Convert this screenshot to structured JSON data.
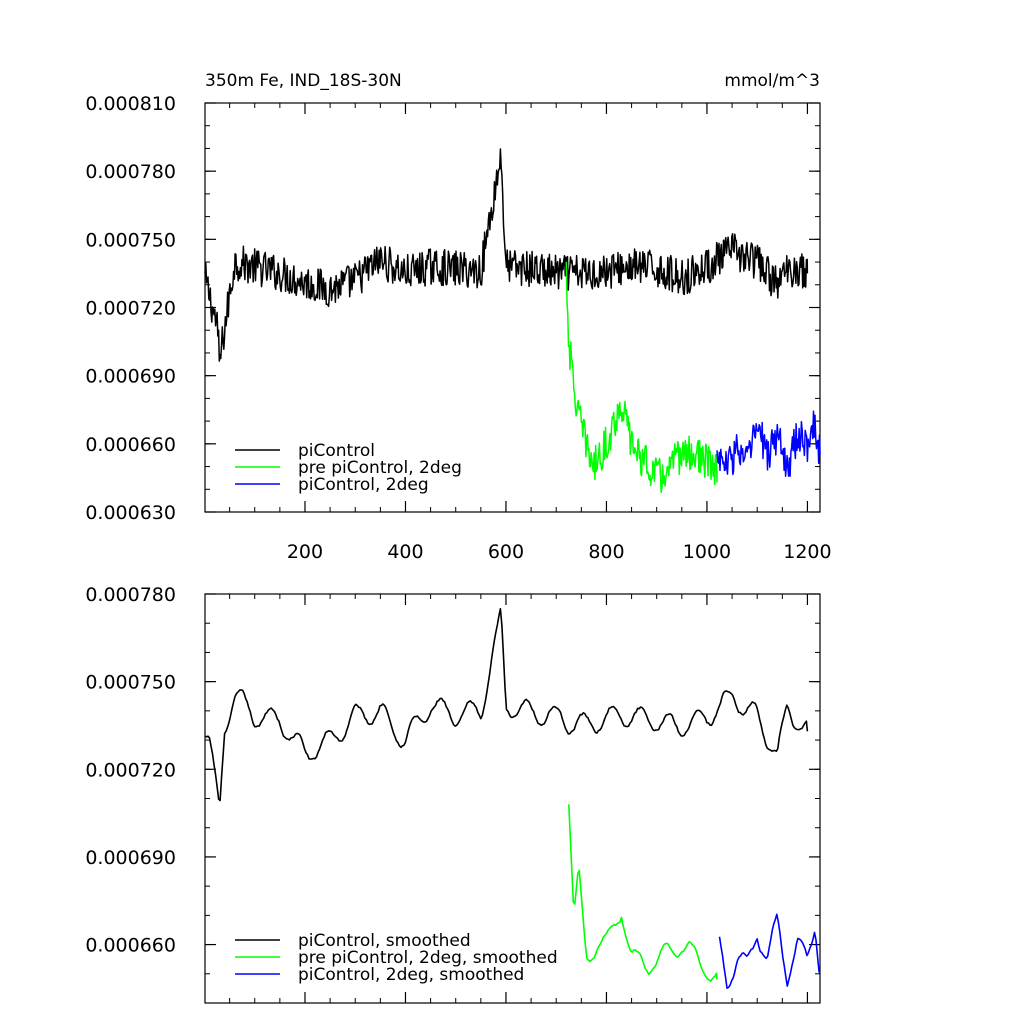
{
  "chart_data": [
    {
      "type": "line",
      "title": "350m Fe, IND_18S-30N",
      "units": "mmol/m^3",
      "xlim": [
        1,
        1225
      ],
      "ylim": [
        0.00063,
        0.00081
      ],
      "x_ticks": [
        200,
        400,
        600,
        800,
        1000,
        1200
      ],
      "y_ticks": [
        0.00063,
        0.00066,
        0.00069,
        0.00072,
        0.00075,
        0.00078,
        0.00081
      ],
      "y_tick_labels": [
        "0.000630",
        "0.000660",
        "0.000690",
        "0.000720",
        "0.000750",
        "0.000780",
        "0.000810"
      ],
      "grid": false,
      "legend_position": "bottom-left",
      "series": [
        {
          "name": "piControl",
          "color": "#000000",
          "x": [
            1,
            25,
            30,
            60,
            100,
            150,
            200,
            250,
            300,
            350,
            400,
            450,
            500,
            550,
            590,
            600,
            650,
            700,
            730,
            760,
            800,
            850,
            900,
            950,
            1000,
            1050,
            1100,
            1140,
            1150,
            1175,
            1200
          ],
          "y": [
            0.000733,
            0.000712,
            0.000696,
            0.00074,
            0.000738,
            0.000735,
            0.000731,
            0.000728,
            0.000732,
            0.000741,
            0.000735,
            0.000738,
            0.000737,
            0.000736,
            0.000787,
            0.000738,
            0.000737,
            0.000735,
            0.000735,
            0.000735,
            0.000736,
            0.000738,
            0.000737,
            0.000733,
            0.000738,
            0.000745,
            0.00074,
            0.00073,
            0.000734,
            0.000738,
            0.000735
          ]
        },
        {
          "name": "pre piControl, 2deg",
          "color": "#00ff00",
          "x": [
            720,
            725,
            735,
            745,
            760,
            775,
            800,
            830,
            850,
            880,
            910,
            950,
            980,
            1020
          ],
          "y": [
            0.000738,
            0.000705,
            0.000685,
            0.000672,
            0.00066,
            0.00065,
            0.00066,
            0.000678,
            0.00066,
            0.000651,
            0.000645,
            0.000656,
            0.000655,
            0.000648
          ]
        },
        {
          "name": "piControl, 2deg",
          "color": "#0000ff",
          "x": [
            1020,
            1040,
            1060,
            1080,
            1100,
            1120,
            1140,
            1160,
            1180,
            1200,
            1215,
            1225
          ],
          "y": [
            0.000655,
            0.00065,
            0.000658,
            0.000652,
            0.000668,
            0.000655,
            0.000664,
            0.00065,
            0.000663,
            0.00066,
            0.00067,
            0.000655
          ]
        }
      ]
    },
    {
      "type": "line",
      "title": "",
      "xlim": [
        1,
        1225
      ],
      "ylim": [
        0.00064,
        0.00078
      ],
      "x_ticks": [
        200,
        400,
        600,
        800,
        1000,
        1200
      ],
      "y_ticks": [
        0.00066,
        0.00069,
        0.00072,
        0.00075,
        0.00078
      ],
      "y_tick_labels": [
        "0.000660",
        "0.000690",
        "0.000720",
        "0.000750",
        "0.000780"
      ],
      "grid": false,
      "legend_position": "bottom-left",
      "series": [
        {
          "name": "piControl, smoothed",
          "color": "#000000",
          "x": [
            1,
            10,
            30,
            40,
            60,
            100,
            150,
            200,
            250,
            300,
            350,
            400,
            450,
            500,
            550,
            590,
            600,
            650,
            700,
            735,
            760,
            800,
            850,
            900,
            950,
            1000,
            1050,
            1100,
            1140,
            1160,
            1200
          ],
          "y": [
            0.000731,
            0.000728,
            0.000705,
            0.000735,
            0.000745,
            0.000738,
            0.000737,
            0.000725,
            0.00073,
            0.000738,
            0.00074,
            0.00073,
            0.000742,
            0.000738,
            0.00074,
            0.000772,
            0.000742,
            0.00074,
            0.000738,
            0.000736,
            0.000735,
            0.000738,
            0.000738,
            0.000736,
            0.000735,
            0.000738,
            0.000745,
            0.000738,
            0.000725,
            0.00074,
            0.000733
          ]
        },
        {
          "name": "pre piControl, 2deg, smoothed",
          "color": "#00ff00",
          "x": [
            725,
            735,
            745,
            760,
            780,
            800,
            830,
            850,
            880,
            910,
            950,
            980,
            1020
          ],
          "y": [
            0.000708,
            0.000668,
            0.000683,
            0.000655,
            0.00066,
            0.00066,
            0.000673,
            0.000655,
            0.000653,
            0.000655,
            0.00066,
            0.000655,
            0.000648
          ]
        },
        {
          "name": "piControl, 2deg, smoothed",
          "color": "#0000ff",
          "x": [
            1025,
            1040,
            1060,
            1080,
            1100,
            1120,
            1140,
            1160,
            1180,
            1200,
            1215,
            1225
          ],
          "y": [
            0.000662,
            0.000648,
            0.000655,
            0.000652,
            0.000665,
            0.000655,
            0.000668,
            0.00065,
            0.00066,
            0.000655,
            0.000668,
            0.00065
          ]
        }
      ]
    }
  ]
}
